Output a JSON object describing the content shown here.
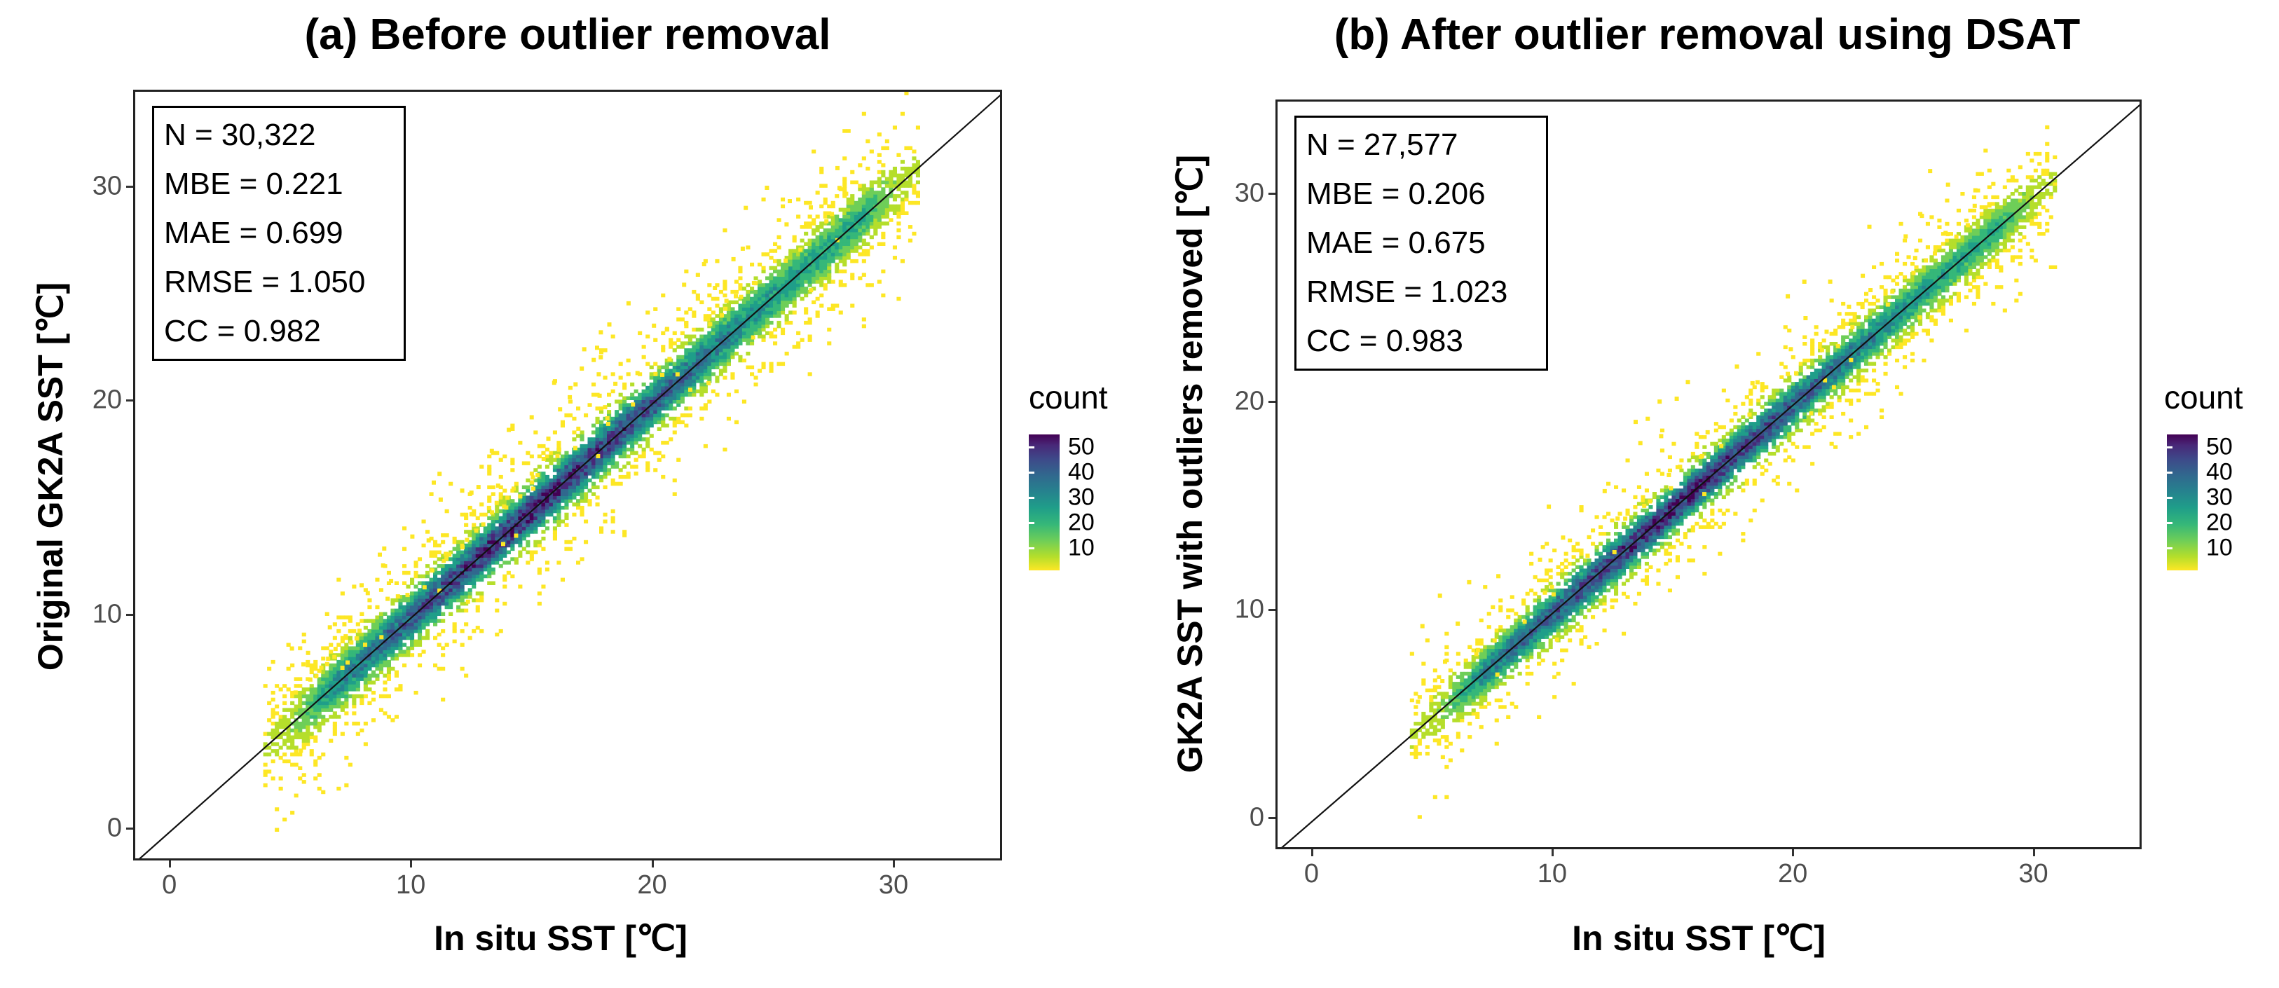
{
  "chart_data": [
    {
      "type": "heatmap",
      "subtype": "2d-bin-density-scatter",
      "title": "(a) Before outlier removal",
      "xlabel": "In situ SST [℃]",
      "ylabel": "Original GK2A SST [℃]",
      "xlim": [
        -1.5,
        34.5
      ],
      "ylim": [
        -1.5,
        34.5
      ],
      "x_ticks": [
        0,
        10,
        20,
        30
      ],
      "y_ticks": [
        0,
        10,
        20,
        30
      ],
      "x_tick_labels": [
        "0",
        "10",
        "20",
        "30"
      ],
      "y_tick_labels": [
        "0",
        "10",
        "20",
        "30"
      ],
      "reference_line": "y = x",
      "stats": [
        "N = 30,322",
        "MBE = 0.221",
        "MAE = 0.699",
        "RMSE = 1.050",
        "CC = 0.982"
      ],
      "legend": {
        "title": "count",
        "labels": [
          "50",
          "40",
          "30",
          "20",
          "10"
        ],
        "values": [
          50,
          40,
          30,
          20,
          10
        ],
        "min": 1,
        "max": 55,
        "colormap": "viridis (reversed)"
      },
      "density": {
        "x_range": [
          3.8,
          31.0
        ],
        "core_spread": 1.1,
        "outer_spread": 2.4,
        "outlier_scale": 1.0
      }
    },
    {
      "type": "heatmap",
      "subtype": "2d-bin-density-scatter",
      "title": "(b) After outlier removal using DSAT",
      "xlabel": "In situ SST [℃]",
      "ylabel": "GK2A SST with outliers removed [℃]",
      "xlim": [
        -1.5,
        34.5
      ],
      "ylim": [
        -1.5,
        34.5
      ],
      "x_ticks": [
        0,
        10,
        20,
        30
      ],
      "y_ticks": [
        0,
        10,
        20,
        30
      ],
      "x_tick_labels": [
        "0",
        "10",
        "20",
        "30"
      ],
      "y_tick_labels": [
        "0",
        "10",
        "20",
        "30"
      ],
      "reference_line": "y = x",
      "stats": [
        "N = 27,577",
        "MBE = 0.206",
        "MAE = 0.675",
        "RMSE = 1.023",
        "CC = 0.983"
      ],
      "legend": {
        "title": "count",
        "labels": [
          "50",
          "40",
          "30",
          "20",
          "10"
        ],
        "values": [
          50,
          40,
          30,
          20,
          10
        ],
        "min": 1,
        "max": 55,
        "colormap": "viridis (reversed)"
      },
      "density": {
        "x_range": [
          4.0,
          30.8
        ],
        "core_spread": 1.0,
        "outer_spread": 2.0,
        "outlier_scale": 0.6
      }
    }
  ]
}
